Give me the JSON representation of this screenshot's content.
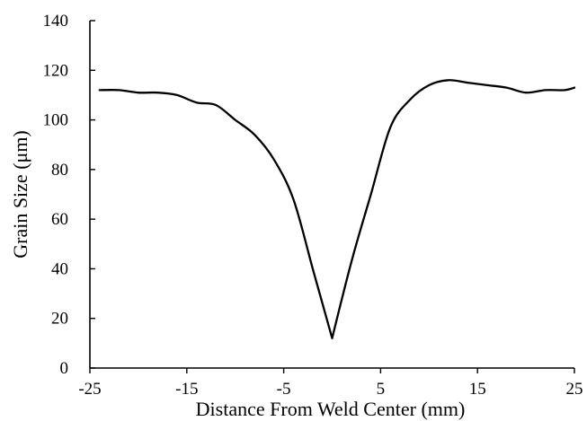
{
  "chart_data": {
    "type": "line",
    "xlabel": "Distance From Weld Center (mm)",
    "ylabel": "Grain Size (μm)",
    "xlim": [
      -25,
      25
    ],
    "ylim": [
      0,
      140
    ],
    "xticks": [
      -25,
      -15,
      -5,
      5,
      15,
      25
    ],
    "yticks": [
      0,
      20,
      40,
      60,
      80,
      100,
      120,
      140
    ],
    "xtick_labels": [
      "-25",
      "-15",
      "-5",
      "5",
      "15",
      "25"
    ],
    "ytick_labels": [
      "0",
      "20",
      "40",
      "60",
      "80",
      "100",
      "120",
      "140"
    ],
    "grid": false,
    "series": [
      {
        "x": [
          -24,
          -22,
          -20,
          -18,
          -16,
          -14,
          -12,
          -10,
          -8,
          -6,
          -4,
          -2,
          0,
          2,
          4,
          6,
          8,
          10,
          12,
          14,
          16,
          18,
          20,
          22,
          24,
          25
        ],
        "y": [
          112,
          112,
          111,
          111,
          110,
          107,
          106,
          100,
          94,
          84,
          68,
          40,
          12,
          43,
          70,
          97,
          108,
          114,
          116,
          115,
          114,
          113,
          111,
          112,
          112,
          113
        ]
      }
    ]
  }
}
